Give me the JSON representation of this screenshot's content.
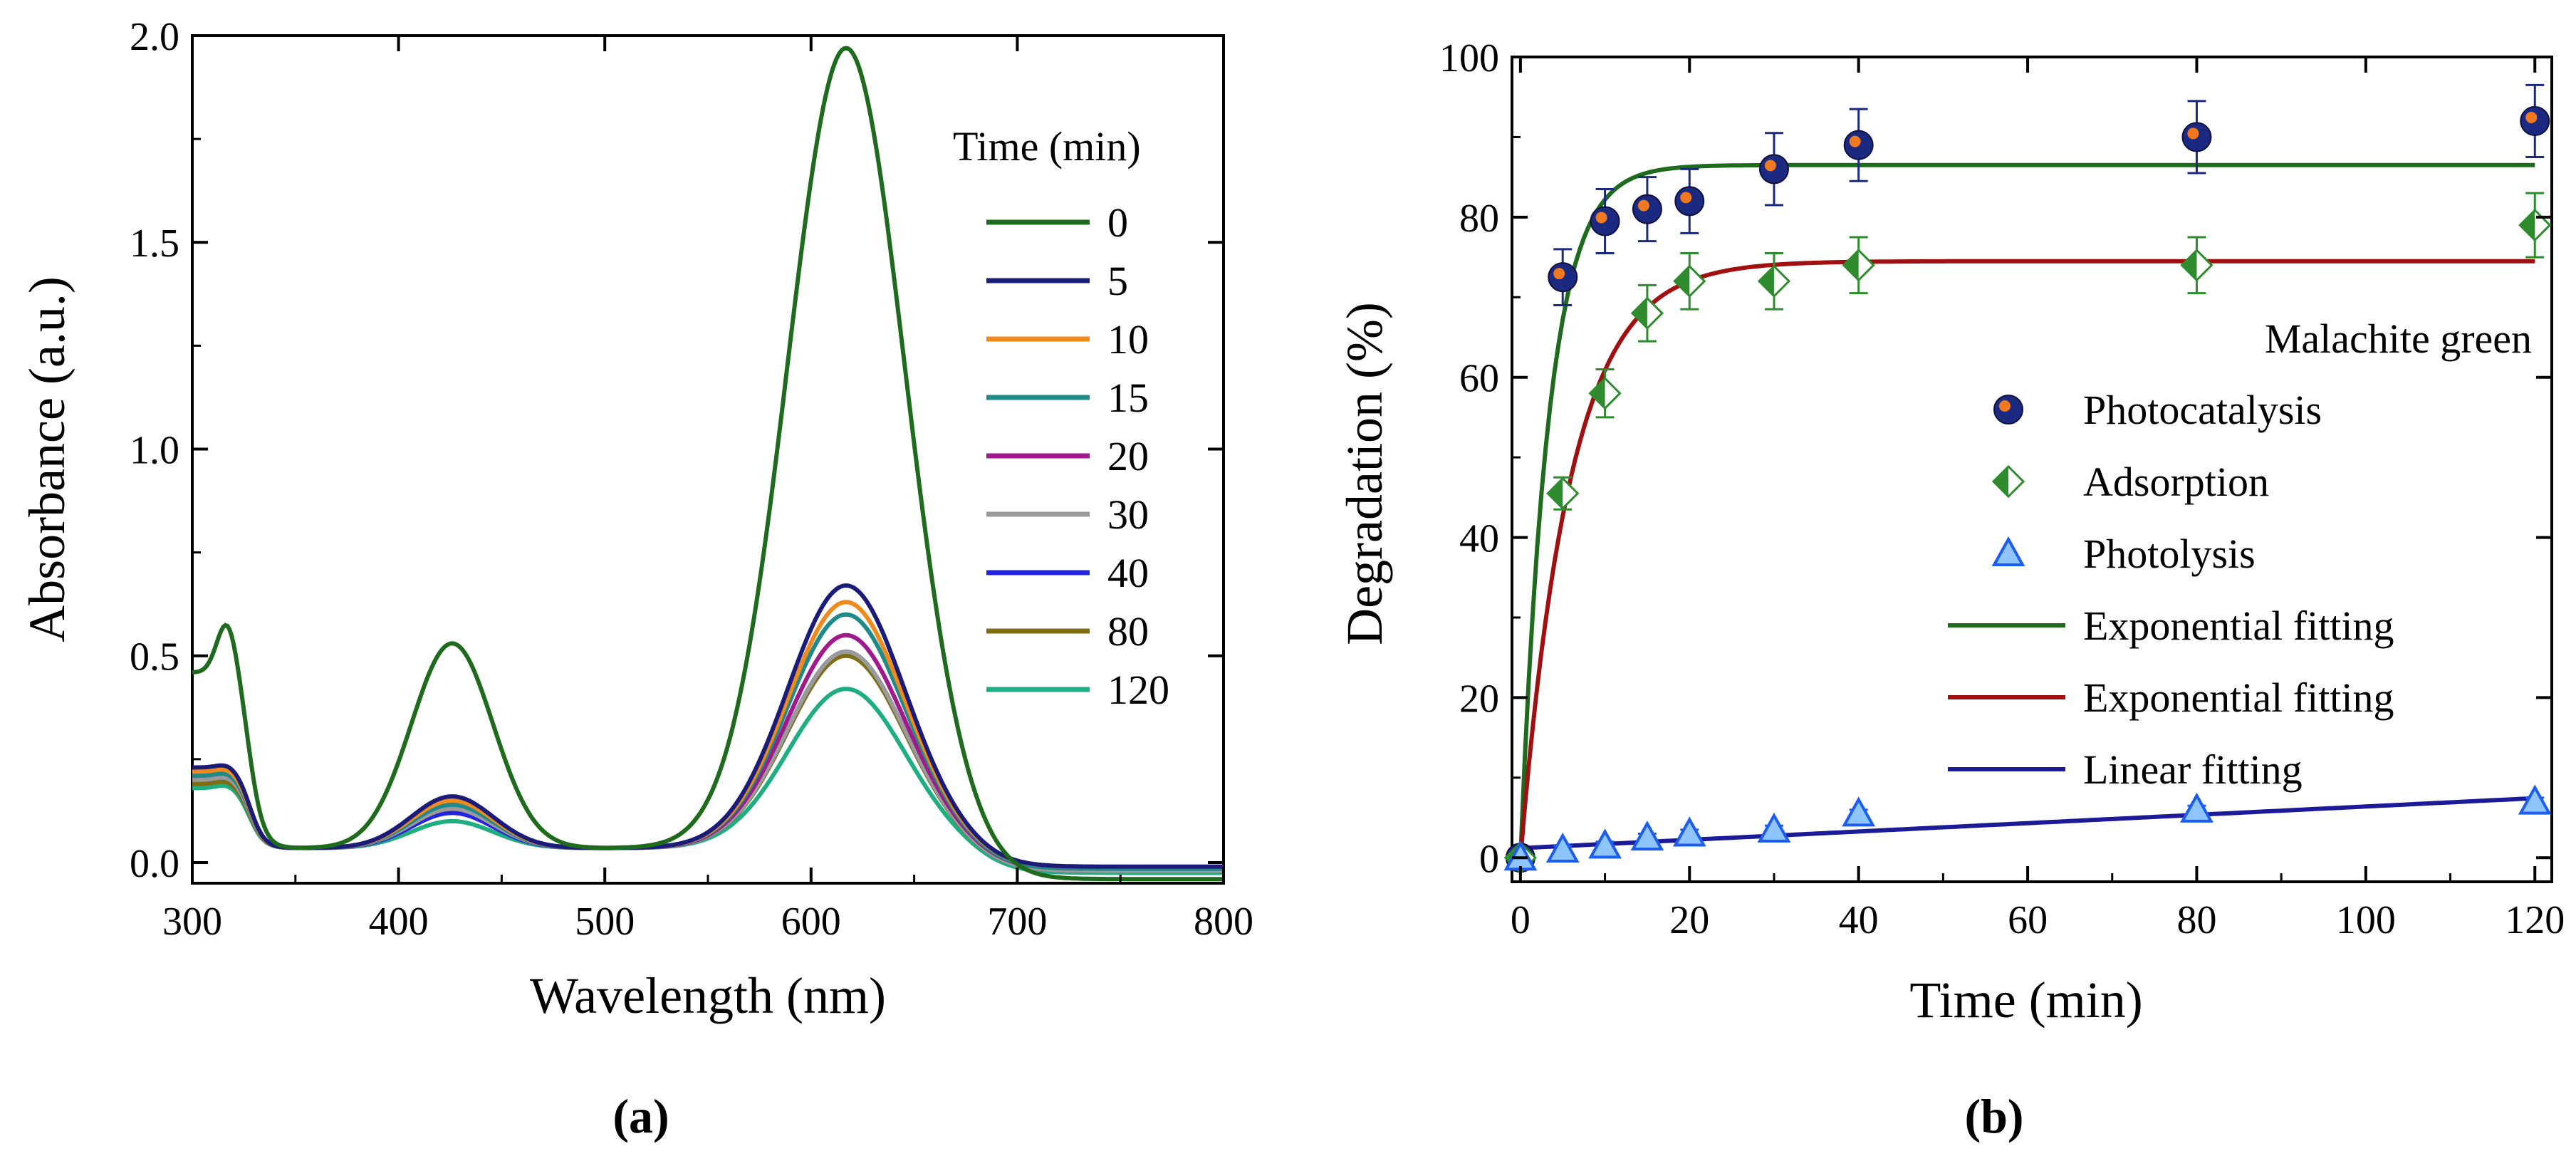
{
  "chart_data": [
    {
      "type": "line",
      "panel_label": "(a)",
      "xlabel": "Wavelength (nm)",
      "ylabel": "Absorbance (a.u.)",
      "xlim": [
        300,
        800
      ],
      "ylim": [
        -0.05,
        2.0
      ],
      "xticks": [
        "300",
        "400",
        "500",
        "600",
        "700",
        "800"
      ],
      "yticks": [
        "0.0",
        "0.5",
        "1.0",
        "1.5",
        "2.0"
      ],
      "legend_title": "Time (min)",
      "legend_position": "top-right",
      "series": [
        {
          "name": "0",
          "color": "#1e6b1e",
          "start": 0.46,
          "uv": 0.59,
          "p1": 0.53,
          "p2": 1.97,
          "tail": -0.04
        },
        {
          "name": "5",
          "color": "#1b1b7a",
          "start": 0.23,
          "uv": 0.24,
          "p1": 0.16,
          "p2": 0.67,
          "tail": -0.01
        },
        {
          "name": "10",
          "color": "#f08a1c",
          "start": 0.22,
          "uv": 0.23,
          "p1": 0.15,
          "p2": 0.63,
          "tail": -0.01
        },
        {
          "name": "15",
          "color": "#1f8a8a",
          "start": 0.21,
          "uv": 0.22,
          "p1": 0.14,
          "p2": 0.6,
          "tail": -0.015
        },
        {
          "name": "20",
          "color": "#a01a8c",
          "start": 0.21,
          "uv": 0.22,
          "p1": 0.14,
          "p2": 0.55,
          "tail": -0.015
        },
        {
          "name": "30",
          "color": "#9a9a9a",
          "start": 0.2,
          "uv": 0.21,
          "p1": 0.13,
          "p2": 0.51,
          "tail": -0.02
        },
        {
          "name": "40",
          "color": "#2323e0",
          "start": 0.2,
          "uv": 0.21,
          "p1": 0.12,
          "p2": 0.51,
          "tail": -0.02
        },
        {
          "name": "80",
          "color": "#7d6e12",
          "start": 0.19,
          "uv": 0.2,
          "p1": 0.12,
          "p2": 0.5,
          "tail": -0.02
        },
        {
          "name": "120",
          "color": "#1fae82",
          "start": 0.18,
          "uv": 0.19,
          "p1": 0.1,
          "p2": 0.42,
          "tail": -0.025
        }
      ]
    },
    {
      "type": "scatter",
      "panel_label": "(b)",
      "xlabel": "Time (min)",
      "ylabel": "Degradation (%)",
      "xlim": [
        -1,
        122
      ],
      "ylim": [
        -3,
        100
      ],
      "xticks": [
        "0",
        "20",
        "40",
        "60",
        "80",
        "100",
        "120"
      ],
      "yticks": [
        "0",
        "20",
        "40",
        "60",
        "80",
        "100"
      ],
      "legend_title": "Malachite green",
      "legend_position": "right",
      "x": [
        0,
        5,
        10,
        15,
        20,
        30,
        40,
        80,
        120
      ],
      "series": [
        {
          "name": "Photocatalysis",
          "marker": "circle",
          "color": "#1b2a80",
          "accent": "#f07820",
          "values": [
            0,
            72.5,
            79.5,
            81,
            82,
            86,
            89,
            90,
            92
          ],
          "errors": [
            0,
            3.5,
            4,
            4,
            4,
            4.5,
            4.5,
            4.5,
            4.5
          ]
        },
        {
          "name": "Adsorption",
          "marker": "diamond",
          "color": "#2e8b2e",
          "accent": "#a8d8a8",
          "values": [
            0,
            45.5,
            58,
            68,
            72,
            72,
            74,
            74,
            79
          ],
          "errors": [
            0,
            2,
            3,
            3.5,
            3.5,
            3.5,
            3.5,
            3.5,
            4
          ]
        },
        {
          "name": "Photolysis",
          "marker": "triangle",
          "color": "#1c5cf0",
          "accent": "#8ec5ff",
          "values": [
            0,
            1,
            1.5,
            2.5,
            3,
            3.5,
            5.5,
            6,
            7
          ],
          "errors": [
            0,
            0.5,
            0.5,
            0.5,
            0.5,
            0.5,
            0.5,
            0.5,
            0.5
          ]
        }
      ],
      "fits": [
        {
          "name": "Exponential fitting",
          "kind": "exponential",
          "color": "#1e6b1e",
          "plateau": 86.5,
          "rate": 0.3,
          "y0": 0,
          "x_end": 120
        },
        {
          "name": "Exponential fitting",
          "kind": "exponential",
          "color": "#a01010",
          "plateau": 74.5,
          "rate": 0.17,
          "y0": 0,
          "x_end": 120
        },
        {
          "name": "Linear fitting",
          "kind": "linear",
          "color": "#1b1b9a",
          "intercept": 1.2,
          "slope": 0.052,
          "x_end": 120
        }
      ]
    }
  ]
}
